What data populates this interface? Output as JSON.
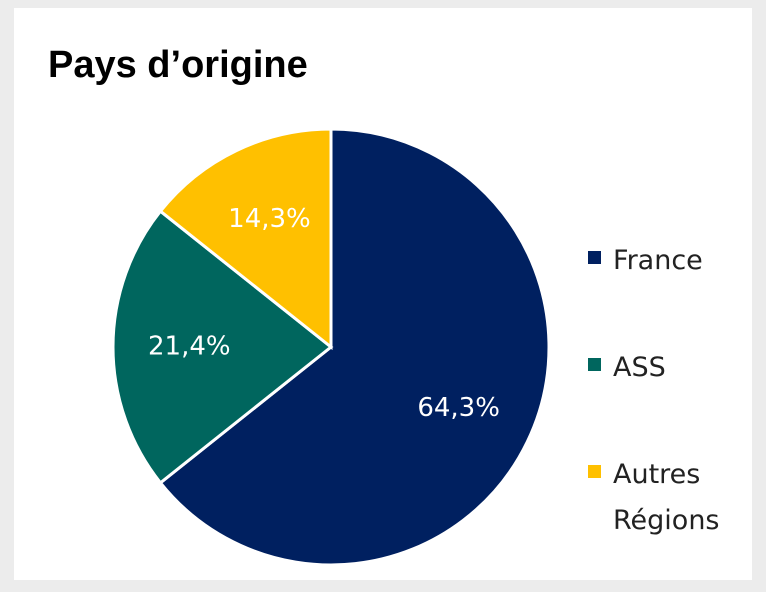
{
  "chart_data": {
    "type": "pie",
    "title": "Pays d’origine",
    "categories": [
      "France",
      "ASS",
      "Autres Régions"
    ],
    "values": [
      64.3,
      21.4,
      14.3
    ],
    "value_labels": [
      "64,3%",
      "21,4%",
      "14,3%"
    ],
    "colors": [
      "#002060",
      "#00665e",
      "#ffc000"
    ]
  }
}
